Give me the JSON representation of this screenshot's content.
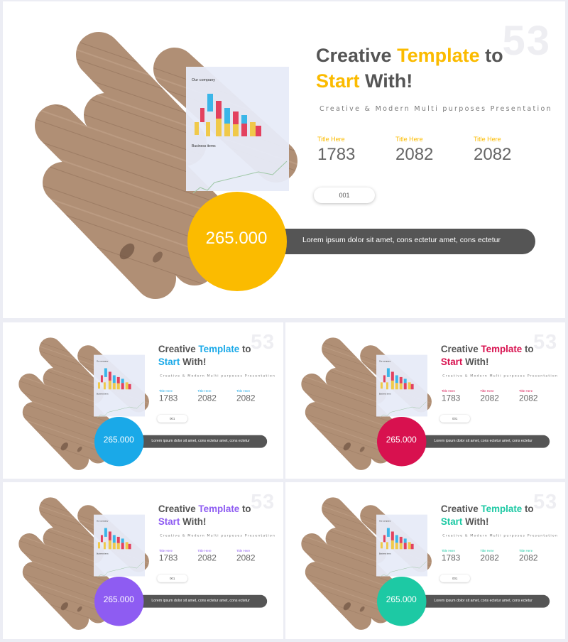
{
  "slides": [
    {
      "accent": "#fbbb00",
      "slide_number": "53",
      "title": {
        "part1": "Creative ",
        "highlight1": "Template",
        "part2": " to",
        "highlight2": "Start",
        "part3": " With!"
      },
      "subtitle": "Creative & Modern Multi purposes Presentation",
      "stats": [
        {
          "label": "Title Here",
          "value": "1783"
        },
        {
          "label": "Title Here",
          "value": "2082"
        },
        {
          "label": "Title Here",
          "value": "2082"
        }
      ],
      "button_label": "001",
      "circle_value": "265.000",
      "bar_text": "Lorem ipsum dolor sit amet, cons ectetur  amet, cons ectetur",
      "mini_report": {
        "heading": "Our company",
        "subheading": "Business items"
      }
    },
    {
      "accent": "#1aa9e8",
      "slide_number": "53",
      "title": {
        "part1": "Creative ",
        "highlight1": "Template",
        "part2": " to",
        "highlight2": "Start",
        "part3": " With!"
      },
      "subtitle": "Creative & Modern Multi purposes Presentation",
      "stats": [
        {
          "label": "Title Here",
          "value": "1783"
        },
        {
          "label": "Title Here",
          "value": "2082"
        },
        {
          "label": "Title Here",
          "value": "2082"
        }
      ],
      "button_label": "001",
      "circle_value": "265.000",
      "bar_text": "Lorem ipsum dolor sit amet, cons ectetur  amet, cons ectetur",
      "mini_report": {
        "heading": "Our company",
        "subheading": "Business items"
      }
    },
    {
      "accent": "#d8114f",
      "slide_number": "53",
      "title": {
        "part1": "Creative ",
        "highlight1": "Template",
        "part2": " to",
        "highlight2": "Start",
        "part3": " With!"
      },
      "subtitle": "Creative & Modern Multi purposes Presentation",
      "stats": [
        {
          "label": "Title Here",
          "value": "1783"
        },
        {
          "label": "Title Here",
          "value": "2082"
        },
        {
          "label": "Title Here",
          "value": "2082"
        }
      ],
      "button_label": "001",
      "circle_value": "265.000",
      "bar_text": "Lorem ipsum dolor sit amet, cons ectetur  amet, cons ectetur",
      "mini_report": {
        "heading": "Our company",
        "subheading": "Business items"
      }
    },
    {
      "accent": "#8e5cf2",
      "slide_number": "53",
      "title": {
        "part1": "Creative ",
        "highlight1": "Template",
        "part2": " to",
        "highlight2": "Start",
        "part3": " With!"
      },
      "subtitle": "Creative & Modern Multi purposes Presentation",
      "stats": [
        {
          "label": "Title Here",
          "value": "1783"
        },
        {
          "label": "Title Here",
          "value": "2082"
        },
        {
          "label": "Title Here",
          "value": "2082"
        }
      ],
      "button_label": "001",
      "circle_value": "265.000",
      "bar_text": "Lorem ipsum dolor sit amet, cons ectetur  amet, cons ectetur",
      "mini_report": {
        "heading": "Our company",
        "subheading": "Business items"
      }
    },
    {
      "accent": "#1dc9a4",
      "slide_number": "53",
      "title": {
        "part1": "Creative ",
        "highlight1": "Template",
        "part2": " to",
        "highlight2": "Start",
        "part3": " With!"
      },
      "subtitle": "Creative & Modern Multi purposes Presentation",
      "stats": [
        {
          "label": "Title Here",
          "value": "1783"
        },
        {
          "label": "Title Here",
          "value": "2082"
        },
        {
          "label": "Title Here",
          "value": "2082"
        }
      ],
      "button_label": "001",
      "circle_value": "265.000",
      "bar_text": "Lorem ipsum dolor sit amet, cons ectetur  amet, cons ectetur",
      "mini_report": {
        "heading": "Our company",
        "subheading": "Business items"
      }
    }
  ]
}
